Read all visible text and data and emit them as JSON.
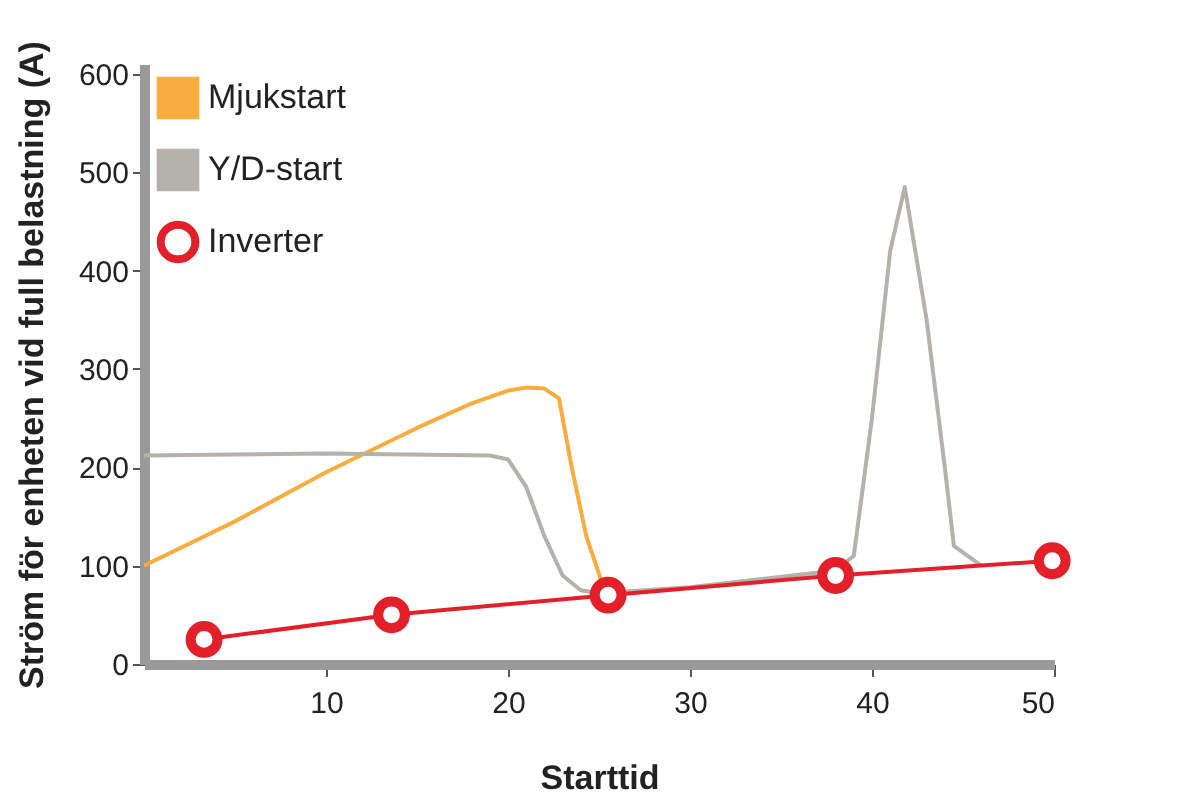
{
  "chart_data": {
    "type": "line",
    "xlabel": "Starttid",
    "ylabel": "Ström för enheten vid full belastning (A)",
    "xlim": [
      0,
      50
    ],
    "ylim": [
      0,
      610
    ],
    "xticks": [
      10,
      20,
      30,
      40,
      50
    ],
    "yticks": [
      0,
      100,
      200,
      300,
      400,
      500,
      600
    ],
    "grid": false,
    "legend": "top left",
    "series": [
      {
        "name": "Mjukstart",
        "color": "#f9ad3f",
        "marker": "none",
        "x": [
          0,
          5,
          10,
          15,
          18,
          20,
          21,
          22,
          22.8,
          23.5,
          24.3,
          25.3
        ],
        "values": [
          100,
          145,
          195,
          240,
          265,
          278,
          281,
          280,
          270,
          200,
          130,
          75
        ]
      },
      {
        "name": "Y/D-start",
        "color": "#b4b2aa",
        "marker": "none",
        "x": [
          0,
          10,
          19,
          20,
          21,
          22,
          23,
          24,
          25,
          30,
          38,
          39,
          40,
          41,
          41.8,
          43,
          44,
          44.5,
          46
        ],
        "values": [
          212,
          214,
          212,
          208,
          180,
          130,
          90,
          75,
          72,
          78,
          95,
          110,
          250,
          420,
          485,
          350,
          200,
          120,
          100
        ]
      },
      {
        "name": "Inverter",
        "color": "#e3202a",
        "marker": "circle",
        "x": [
          3.3,
          13.6,
          25.5,
          38,
          49.9
        ],
        "values": [
          25,
          50,
          70,
          90,
          105
        ]
      }
    ]
  }
}
